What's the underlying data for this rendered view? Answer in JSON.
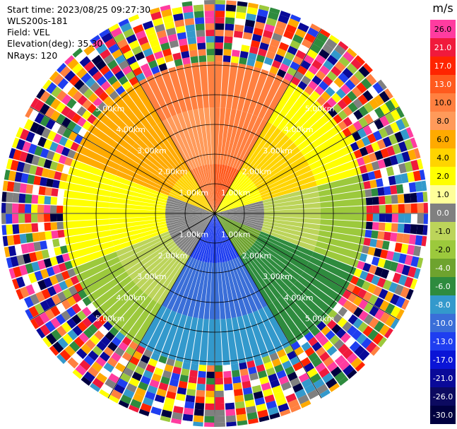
{
  "info": {
    "start_time": "Start time: 2023/08/25 09:27:30",
    "instrument": "WLS200s-181",
    "field": "Field: VEL",
    "elevation": "Elevation(deg): 35.30",
    "nrays": "NRays: 120"
  },
  "chart_data": {
    "type": "heatmap",
    "projection": "polar-ppi",
    "field": "VEL",
    "units": "m/s",
    "n_rays": 120,
    "range_rings_km": [
      1.0,
      2.0,
      3.0,
      4.0,
      5.0
    ],
    "ring_labels": [
      "1.00km",
      "2.00km",
      "3.00km",
      "4.00km",
      "5.00km"
    ],
    "colorbar": {
      "title": "m/s",
      "ticks": [
        "26.0",
        "21.0",
        "17.0",
        "13.0",
        "10.0",
        "8.0",
        "6.0",
        "4.0",
        "2.0",
        "1.0",
        "0.0",
        "-1.0",
        "-2.0",
        "-4.0",
        "-6.0",
        "-8.0",
        "-10.0",
        "-13.0",
        "-17.0",
        "-21.0",
        "-26.0",
        "-30.0"
      ],
      "colors": [
        "#ff3ca0",
        "#f01a3c",
        "#ff2400",
        "#ff5a1e",
        "#ff8040",
        "#ff9a5a",
        "#ffaa00",
        "#ffd400",
        "#ffff00",
        "#ffff99",
        "#808080",
        "#bcd45a",
        "#9cc93c",
        "#6ea32e",
        "#2e8b3e",
        "#3399cc",
        "#3a6ed8",
        "#1f3ef0",
        "#0a14d6",
        "#0a0a99",
        "#0c0a60",
        "#000040"
      ]
    },
    "sector_pattern": [
      {
        "from_deg": 0,
        "to_deg": 30,
        "near": "#ff5a1e",
        "mid": "#ff8040",
        "far": "#ff8040"
      },
      {
        "from_deg": 30,
        "to_deg": 75,
        "near": "#ffff00",
        "mid": "#ffd400",
        "far": "#ffff00"
      },
      {
        "from_deg": 75,
        "to_deg": 110,
        "near": "#808080",
        "mid": "#bcd45a",
        "far": "#9cc93c"
      },
      {
        "from_deg": 110,
        "to_deg": 150,
        "near": "#6ea32e",
        "mid": "#2e8b3e",
        "far": "#2e8b3e"
      },
      {
        "from_deg": 150,
        "to_deg": 210,
        "near": "#1f3ef0",
        "mid": "#3a6ed8",
        "far": "#3399cc"
      },
      {
        "from_deg": 210,
        "to_deg": 250,
        "near": "#808080",
        "mid": "#bcd45a",
        "far": "#9cc93c"
      },
      {
        "from_deg": 250,
        "to_deg": 290,
        "near": "#808080",
        "mid": "#ffff00",
        "far": "#ffff00"
      },
      {
        "from_deg": 290,
        "to_deg": 330,
        "near": "#ffd400",
        "mid": "#ffaa00",
        "far": "#ffaa00"
      },
      {
        "from_deg": 330,
        "to_deg": 360,
        "near": "#ff8040",
        "mid": "#ff9a5a",
        "far": "#ff8040"
      }
    ]
  }
}
